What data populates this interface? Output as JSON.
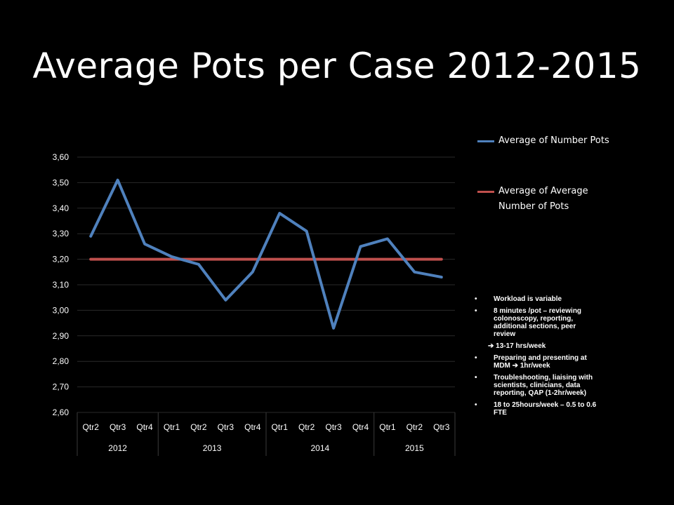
{
  "slide": {
    "title": "Average Pots per Case 2012-2015"
  },
  "colors": {
    "background": "#000000",
    "series_1": "#4F81BD",
    "series_2": "#C0504D",
    "gridline": "#2a2a2a",
    "text": "#ffffff"
  },
  "chart_data": {
    "type": "line",
    "title": "",
    "xlabel": "",
    "ylabel": "",
    "ylim": [
      2.6,
      3.6
    ],
    "ytick_step": 0.1,
    "ytick_labels": [
      "2,60",
      "2,70",
      "2,80",
      "2,90",
      "3,00",
      "3,10",
      "3,20",
      "3,30",
      "3,40",
      "3,50",
      "3,60"
    ],
    "grid": "horizontal",
    "legend_position": "top-right",
    "categories": [
      "Qtr2",
      "Qtr3",
      "Qtr4",
      "Qtr1",
      "Qtr2",
      "Qtr3",
      "Qtr4",
      "Qtr1",
      "Qtr2",
      "Qtr3",
      "Qtr4",
      "Qtr1",
      "Qtr2",
      "Qtr3"
    ],
    "year_groups": [
      {
        "year": "2012",
        "count": 3
      },
      {
        "year": "2013",
        "count": 4
      },
      {
        "year": "2014",
        "count": 4
      },
      {
        "year": "2015",
        "count": 3
      }
    ],
    "series": [
      {
        "name": "Average of Number Pots",
        "color": "#4F81BD",
        "values": [
          3.29,
          3.51,
          3.26,
          3.21,
          3.18,
          3.04,
          3.15,
          3.38,
          3.31,
          2.93,
          3.25,
          3.28,
          3.15,
          3.13
        ]
      },
      {
        "name": "Average of Average Number of Pots",
        "color": "#C0504D",
        "values": [
          3.2,
          3.2,
          3.2,
          3.2,
          3.2,
          3.2,
          3.2,
          3.2,
          3.2,
          3.2,
          3.2,
          3.2,
          3.2,
          3.2
        ]
      }
    ]
  },
  "legend": {
    "items": [
      {
        "label": "Average of Number Pots",
        "color": "#4F81BD"
      },
      {
        "label": "Average of Average Number of Pots",
        "color": "#C0504D"
      }
    ]
  },
  "notes": {
    "items": [
      {
        "style": "bullet",
        "text": "Workload is variable"
      },
      {
        "style": "bullet",
        "text": "8 minutes /pot – reviewing colonoscopy, reporting, additional sections, peer review"
      },
      {
        "style": "arrow",
        "text": "➔ 13-17 hrs/week"
      },
      {
        "style": "bullet",
        "text": "Preparing and presenting at MDM ➔ 1hr/week"
      },
      {
        "style": "bullet",
        "text": "Troubleshooting, liaising with scientists, clinicians, data reporting, QAP (1-2hr/week)"
      },
      {
        "style": "bullet",
        "text": "18 to 25hours/week – 0.5 to 0.6 FTE"
      }
    ]
  }
}
